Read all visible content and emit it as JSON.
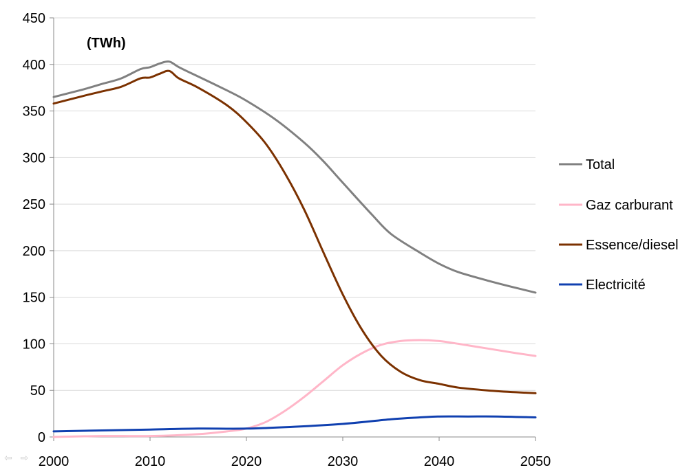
{
  "chart_data": {
    "type": "line",
    "unit_label": "(TWh)",
    "xlabel": "",
    "ylabel": "",
    "xlim": [
      2000,
      2050
    ],
    "ylim": [
      0,
      450
    ],
    "x_ticks": [
      2000,
      2010,
      2020,
      2030,
      2040,
      2050
    ],
    "y_ticks": [
      0,
      50,
      100,
      150,
      200,
      250,
      300,
      350,
      400,
      450
    ],
    "grid": "horizontal",
    "legend_position": "right",
    "series": [
      {
        "name": "Total",
        "color": "#808080",
        "points": [
          [
            2000,
            365
          ],
          [
            2003,
            373
          ],
          [
            2005,
            379
          ],
          [
            2007,
            385
          ],
          [
            2009,
            395
          ],
          [
            2010,
            397
          ],
          [
            2011,
            401
          ],
          [
            2012,
            403
          ],
          [
            2013,
            397
          ],
          [
            2015,
            387
          ],
          [
            2018,
            372
          ],
          [
            2020,
            361
          ],
          [
            2023,
            341
          ],
          [
            2026,
            316
          ],
          [
            2028,
            296
          ],
          [
            2030,
            273
          ],
          [
            2033,
            239
          ],
          [
            2035,
            218
          ],
          [
            2038,
            198
          ],
          [
            2040,
            186
          ],
          [
            2042,
            177
          ],
          [
            2045,
            168
          ],
          [
            2048,
            160
          ],
          [
            2050,
            155
          ]
        ]
      },
      {
        "name": "Gaz carburant",
        "color": "#ffb6c8",
        "points": [
          [
            2000,
            0
          ],
          [
            2005,
            1
          ],
          [
            2010,
            1
          ],
          [
            2015,
            3
          ],
          [
            2018,
            6
          ],
          [
            2020,
            9
          ],
          [
            2022,
            16
          ],
          [
            2024,
            28
          ],
          [
            2026,
            43
          ],
          [
            2028,
            60
          ],
          [
            2030,
            77
          ],
          [
            2032,
            90
          ],
          [
            2034,
            99
          ],
          [
            2036,
            103
          ],
          [
            2038,
            104
          ],
          [
            2040,
            103
          ],
          [
            2042,
            100
          ],
          [
            2045,
            95
          ],
          [
            2048,
            90
          ],
          [
            2050,
            87
          ]
        ]
      },
      {
        "name": "Essence/diesel",
        "color": "#7b3100",
        "points": [
          [
            2000,
            358
          ],
          [
            2003,
            366
          ],
          [
            2005,
            371
          ],
          [
            2007,
            376
          ],
          [
            2009,
            385
          ],
          [
            2010,
            386
          ],
          [
            2011,
            390
          ],
          [
            2012,
            393
          ],
          [
            2013,
            385
          ],
          [
            2015,
            375
          ],
          [
            2018,
            356
          ],
          [
            2020,
            338
          ],
          [
            2022,
            315
          ],
          [
            2024,
            283
          ],
          [
            2026,
            244
          ],
          [
            2028,
            198
          ],
          [
            2030,
            153
          ],
          [
            2032,
            115
          ],
          [
            2034,
            87
          ],
          [
            2036,
            70
          ],
          [
            2038,
            61
          ],
          [
            2040,
            57
          ],
          [
            2042,
            53
          ],
          [
            2045,
            50
          ],
          [
            2048,
            48
          ],
          [
            2050,
            47
          ]
        ]
      },
      {
        "name": "Electricité",
        "color": "#1040b0",
        "points": [
          [
            2000,
            6
          ],
          [
            2005,
            7
          ],
          [
            2010,
            8
          ],
          [
            2015,
            9
          ],
          [
            2020,
            9
          ],
          [
            2025,
            11
          ],
          [
            2030,
            14
          ],
          [
            2035,
            19
          ],
          [
            2038,
            21
          ],
          [
            2040,
            22
          ],
          [
            2043,
            22
          ],
          [
            2046,
            22
          ],
          [
            2050,
            21
          ]
        ]
      }
    ]
  }
}
